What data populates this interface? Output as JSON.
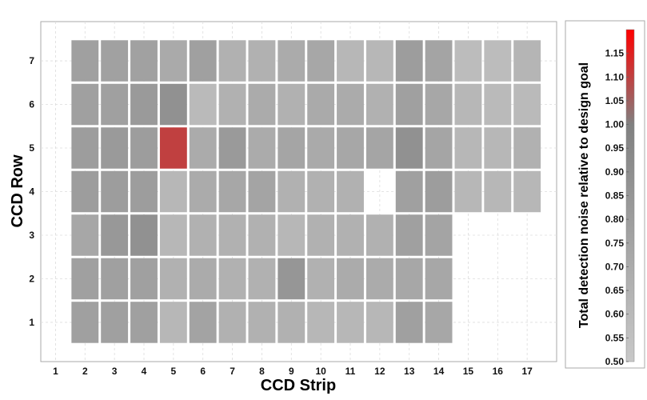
{
  "chart_data": {
    "type": "heatmap",
    "xlabel": "CCD Strip",
    "ylabel": "CCD Row",
    "x_ticks": [
      "1",
      "2",
      "3",
      "4",
      "5",
      "6",
      "7",
      "8",
      "9",
      "10",
      "11",
      "12",
      "13",
      "14",
      "15",
      "16",
      "17"
    ],
    "y_ticks": [
      "1",
      "2",
      "3",
      "4",
      "5",
      "6",
      "7"
    ],
    "xlim": [
      0.5,
      18
    ],
    "ylim": [
      0.1,
      7.9
    ],
    "grid": true,
    "colorbar": {
      "label": "Total detection noise relative to design goal",
      "range": [
        0.5,
        1.2
      ],
      "ticks": [
        "0.50",
        "0.55",
        "0.60",
        "0.65",
        "0.70",
        "0.75",
        "0.80",
        "0.85",
        "0.90",
        "0.95",
        "1.00",
        "1.05",
        "1.10",
        "1.15"
      ],
      "low_color": "#c8c8c8",
      "mid_color": "#808080",
      "high_color": "#ff0000",
      "mid_value": 1.0
    },
    "series": [
      {
        "row": 7,
        "x": [
          2,
          3,
          4,
          5,
          6,
          7,
          8,
          9,
          10,
          11,
          12,
          13,
          14,
          15,
          16,
          17
        ],
        "values": [
          0.78,
          0.77,
          0.77,
          0.71,
          0.78,
          0.66,
          0.66,
          0.7,
          0.73,
          0.62,
          0.62,
          0.8,
          0.75,
          0.58,
          0.58,
          0.63
        ]
      },
      {
        "row": 6,
        "x": [
          2,
          3,
          4,
          5,
          6,
          7,
          8,
          9,
          10,
          11,
          12,
          13,
          14,
          15,
          16,
          17
        ],
        "values": [
          0.78,
          0.78,
          0.82,
          0.88,
          0.6,
          0.66,
          0.7,
          0.66,
          0.71,
          0.7,
          0.66,
          0.78,
          0.73,
          0.62,
          0.6,
          0.6
        ]
      },
      {
        "row": 5,
        "x": [
          2,
          3,
          4,
          5,
          6,
          7,
          8,
          9,
          10,
          11,
          12,
          13,
          14,
          15,
          16,
          17
        ],
        "values": [
          0.8,
          0.82,
          0.8,
          1.1,
          0.7,
          0.82,
          0.7,
          0.74,
          0.71,
          0.73,
          0.74,
          0.88,
          0.74,
          0.62,
          0.62,
          0.66
        ]
      },
      {
        "row": 4,
        "x": [
          2,
          3,
          4,
          5,
          6,
          7,
          8,
          9,
          10,
          11,
          13,
          14,
          15,
          16,
          17
        ],
        "values": [
          0.8,
          0.8,
          0.8,
          0.62,
          0.7,
          0.73,
          0.75,
          0.66,
          0.66,
          0.66,
          0.78,
          0.8,
          0.62,
          0.62,
          0.62
        ]
      },
      {
        "row": 3,
        "x": [
          2,
          3,
          4,
          5,
          6,
          7,
          8,
          9,
          10,
          11,
          12,
          13,
          14
        ],
        "values": [
          0.73,
          0.83,
          0.88,
          0.62,
          0.66,
          0.66,
          0.66,
          0.62,
          0.66,
          0.66,
          0.66,
          0.78,
          0.75
        ]
      },
      {
        "row": 2,
        "x": [
          2,
          3,
          4,
          5,
          6,
          7,
          8,
          9,
          10,
          11,
          12,
          13,
          14
        ],
        "values": [
          0.78,
          0.78,
          0.78,
          0.66,
          0.7,
          0.66,
          0.66,
          0.85,
          0.66,
          0.7,
          0.7,
          0.73,
          0.73
        ]
      },
      {
        "row": 1,
        "x": [
          2,
          3,
          4,
          5,
          6,
          7,
          8,
          9,
          10,
          11,
          12,
          13,
          14
        ],
        "values": [
          0.78,
          0.78,
          0.78,
          0.62,
          0.76,
          0.66,
          0.66,
          0.66,
          0.62,
          0.62,
          0.62,
          0.78,
          0.73
        ]
      }
    ]
  }
}
